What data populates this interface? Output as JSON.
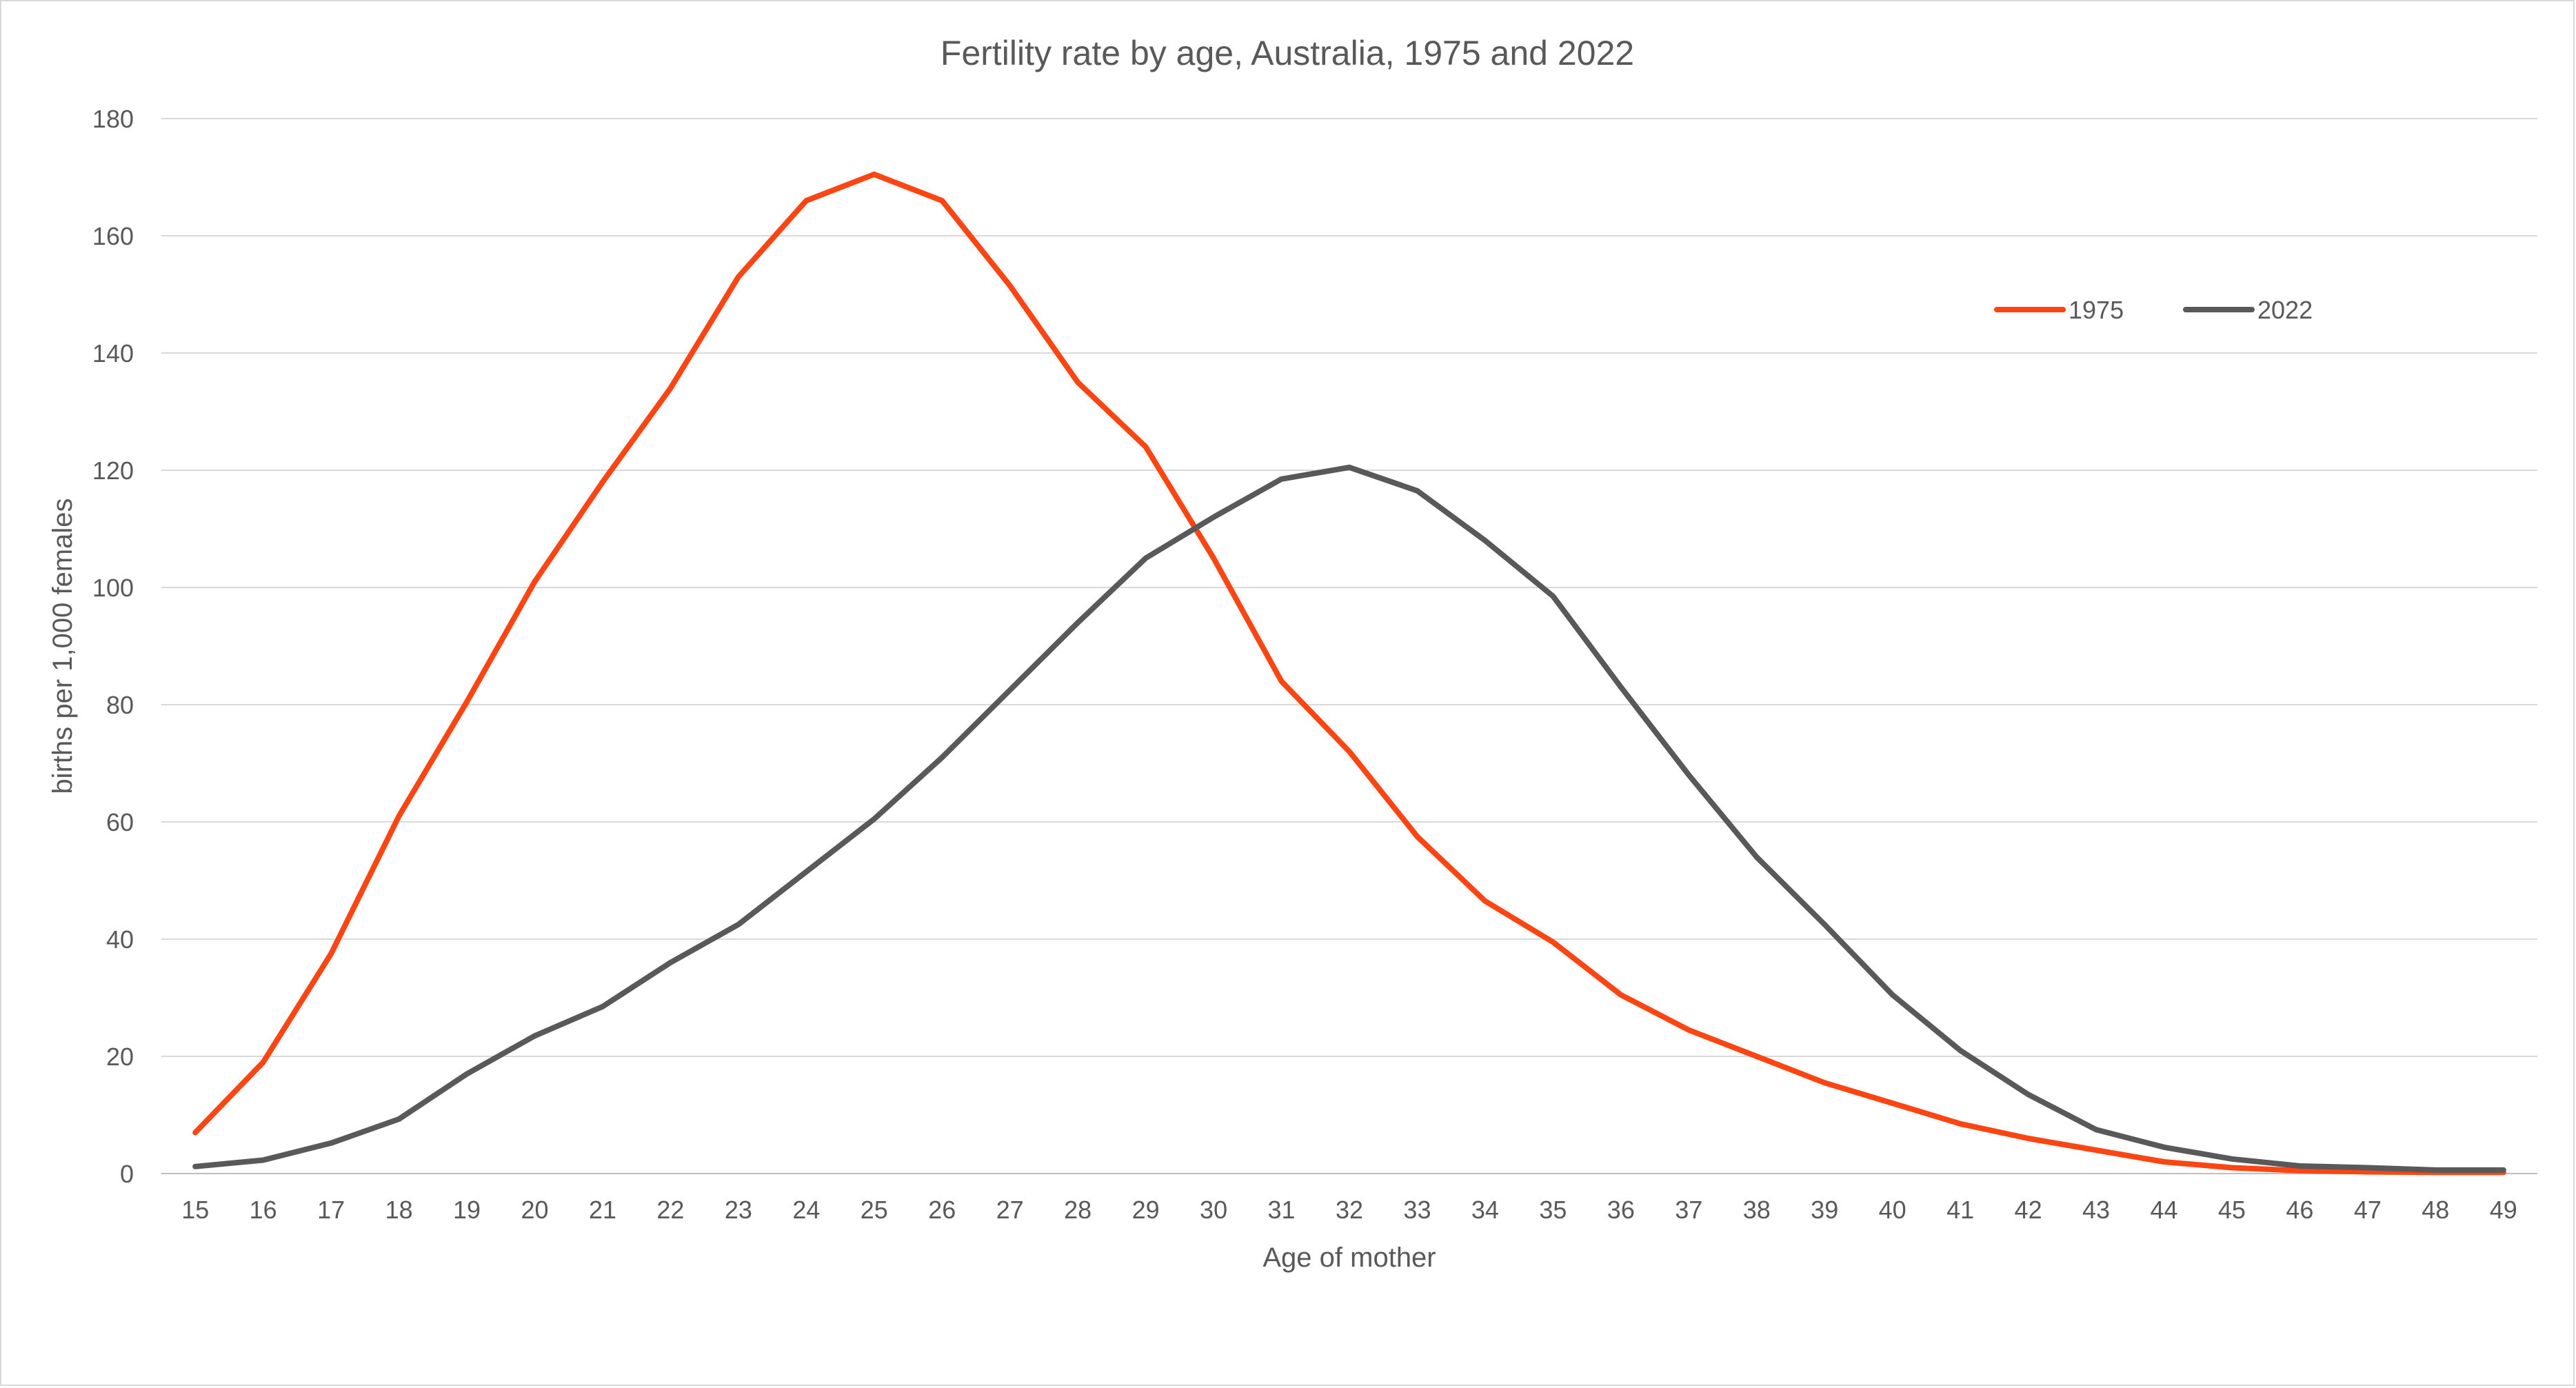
{
  "chart_data": {
    "type": "line",
    "title": "Fertility rate by age, Australia, 1975 and 2022",
    "xlabel": "Age of mother",
    "ylabel": "births per 1,000 females",
    "ylim": [
      0,
      180
    ],
    "yticks": [
      0,
      20,
      40,
      60,
      80,
      100,
      120,
      140,
      160,
      180
    ],
    "grid": true,
    "legend_position": "top-right",
    "categories": [
      "15",
      "16",
      "17",
      "18",
      "19",
      "20",
      "21",
      "22",
      "23",
      "24",
      "25",
      "26",
      "27",
      "28",
      "29",
      "30",
      "31",
      "32",
      "33",
      "34",
      "35",
      "36",
      "37",
      "38",
      "39",
      "40",
      "41",
      "42",
      "43",
      "44",
      "45",
      "46",
      "47",
      "48",
      "49"
    ],
    "series": [
      {
        "name": "1975",
        "color": "#fc4512",
        "values": [
          7,
          19,
          37.5,
          61,
          80.5,
          101,
          118,
          134,
          153,
          166,
          170.5,
          166,
          151.5,
          135,
          124,
          105,
          84,
          72,
          57.5,
          46.5,
          39.5,
          30.5,
          24.5,
          20,
          15.5,
          12,
          8.5,
          6,
          4,
          2,
          1,
          0.5,
          0.3,
          0.2,
          0.2
        ]
      },
      {
        "name": "2022",
        "color": "#595959",
        "values": [
          1.2,
          2.3,
          5.2,
          9.3,
          17,
          23.5,
          28.5,
          36,
          42.5,
          51.5,
          60.5,
          71,
          82.5,
          94,
          105,
          112,
          118.5,
          120.5,
          116.5,
          108,
          98.5,
          83,
          68,
          54,
          42.5,
          30.5,
          21,
          13.5,
          7.5,
          4.5,
          2.5,
          1.3,
          1,
          0.6,
          0.6
        ]
      }
    ]
  }
}
